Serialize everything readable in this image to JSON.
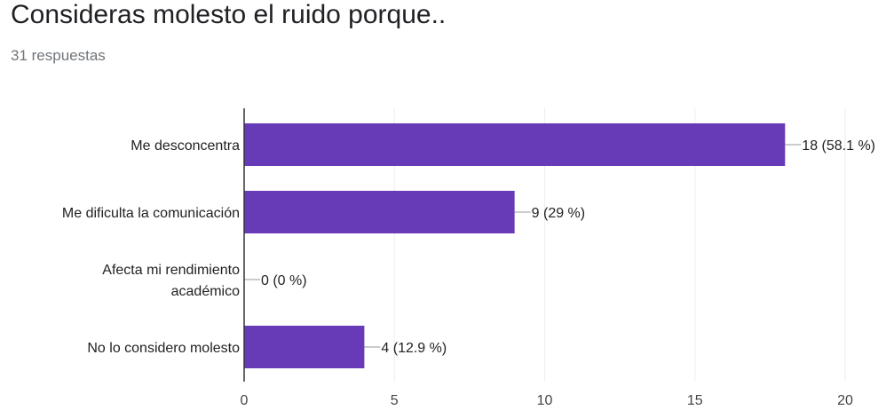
{
  "header": {
    "title": "Consideras molesto el ruido porque..",
    "responses": "31 respuestas"
  },
  "colors": {
    "bar": "#673ab7",
    "grid": "#eeeeee",
    "axis": "#333333",
    "leader": "#999999"
  },
  "chart_data": {
    "type": "bar",
    "orientation": "horizontal",
    "categories": [
      [
        "Me desconcentra"
      ],
      [
        "Me dificulta la comunicación"
      ],
      [
        "Afecta mi rendimiento",
        "académico"
      ],
      [
        "No lo considero molesto"
      ]
    ],
    "values": [
      18,
      9,
      0,
      4
    ],
    "value_labels": [
      "18 (58.1 %)",
      "9 (29 %)",
      "0 (0 %)",
      "4 (12.9 %)"
    ],
    "xlim": [
      0,
      20
    ],
    "xticks": [
      0,
      5,
      10,
      15,
      20
    ],
    "grid": true
  }
}
